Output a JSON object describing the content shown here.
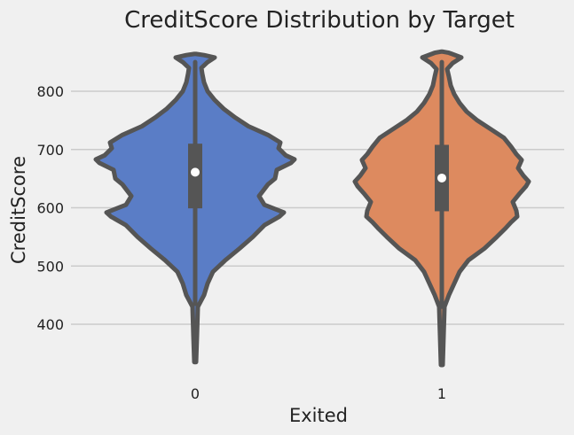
{
  "chart_data": {
    "type": "violin",
    "title": "CreditScore Distribution by Target",
    "xlabel": "Exited",
    "ylabel": "CreditScore",
    "categories": [
      "0",
      "1"
    ],
    "ylim": [
      322,
      868
    ],
    "yticks": [
      400,
      500,
      600,
      700,
      800
    ],
    "grid": true,
    "legend": "none",
    "series": [
      {
        "category": "0",
        "color": "#5a7dc6",
        "outline": "#555555",
        "median": 661,
        "q1": 599,
        "q3": 710,
        "whisker_low": 435,
        "whisker_high": 850,
        "profile": [
          [
            335,
            1
          ],
          [
            380,
            2
          ],
          [
            430,
            3
          ],
          [
            450,
            10
          ],
          [
            470,
            14
          ],
          [
            490,
            20
          ],
          [
            510,
            34
          ],
          [
            530,
            50
          ],
          [
            550,
            65
          ],
          [
            570,
            78
          ],
          [
            585,
            95
          ],
          [
            592,
            100
          ],
          [
            605,
            78
          ],
          [
            620,
            72
          ],
          [
            640,
            82
          ],
          [
            650,
            90
          ],
          [
            665,
            92
          ],
          [
            677,
            108
          ],
          [
            683,
            112
          ],
          [
            690,
            102
          ],
          [
            702,
            94
          ],
          [
            712,
            96
          ],
          [
            725,
            82
          ],
          [
            740,
            60
          ],
          [
            755,
            45
          ],
          [
            770,
            32
          ],
          [
            785,
            22
          ],
          [
            800,
            14
          ],
          [
            815,
            10
          ],
          [
            830,
            8
          ],
          [
            840,
            7
          ],
          [
            850,
            14
          ],
          [
            858,
            22
          ],
          [
            862,
            10
          ],
          [
            864,
            1
          ]
        ]
      },
      {
        "category": "1",
        "color": "#dd8a5f",
        "outline": "#555555",
        "median": 651,
        "q1": 594,
        "q3": 708,
        "whisker_low": 430,
        "whisker_high": 850,
        "profile": [
          [
            330,
            1
          ],
          [
            380,
            2
          ],
          [
            430,
            3
          ],
          [
            450,
            8
          ],
          [
            470,
            14
          ],
          [
            490,
            20
          ],
          [
            510,
            30
          ],
          [
            530,
            48
          ],
          [
            550,
            62
          ],
          [
            565,
            72
          ],
          [
            575,
            78
          ],
          [
            585,
            85
          ],
          [
            595,
            84
          ],
          [
            610,
            80
          ],
          [
            625,
            88
          ],
          [
            637,
            95
          ],
          [
            645,
            98
          ],
          [
            655,
            92
          ],
          [
            668,
            86
          ],
          [
            682,
            90
          ],
          [
            692,
            84
          ],
          [
            705,
            78
          ],
          [
            720,
            70
          ],
          [
            735,
            55
          ],
          [
            750,
            40
          ],
          [
            765,
            28
          ],
          [
            780,
            20
          ],
          [
            795,
            14
          ],
          [
            810,
            10
          ],
          [
            825,
            8
          ],
          [
            838,
            6
          ],
          [
            848,
            12
          ],
          [
            858,
            22
          ],
          [
            866,
            8
          ],
          [
            868,
            1
          ]
        ]
      }
    ]
  }
}
